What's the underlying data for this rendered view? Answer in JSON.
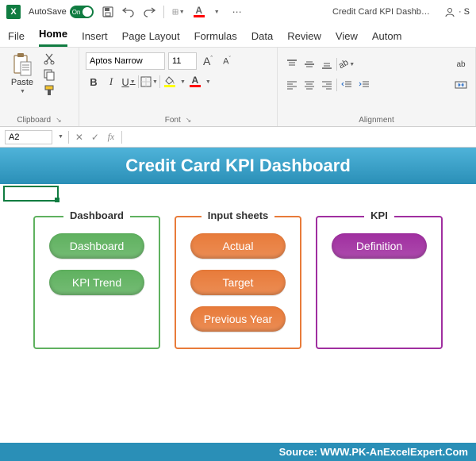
{
  "titlebar": {
    "autosave_label": "AutoSave",
    "autosave_state": "On",
    "doc_title": "Credit Card KPI Dashb…",
    "account_indicator": "· S"
  },
  "tabs": {
    "items": [
      "File",
      "Home",
      "Insert",
      "Page Layout",
      "Formulas",
      "Data",
      "Review",
      "View",
      "Autom"
    ],
    "active_index": 1
  },
  "ribbon": {
    "clipboard": {
      "paste": "Paste",
      "group_label": "Clipboard"
    },
    "font": {
      "name": "Aptos Narrow",
      "size": "11",
      "bold": "B",
      "italic": "I",
      "underline": "U",
      "group_label": "Font",
      "increase": "A",
      "decrease": "A",
      "fill_color": "#ffff00",
      "font_color": "#ff0000",
      "underline_accent": "#ff0000"
    },
    "alignment": {
      "group_label": "Alignment",
      "wrap": "ab"
    }
  },
  "formula_bar": {
    "cell_ref": "A2",
    "fx": "fx"
  },
  "dashboard": {
    "banner_title": "Credit Card KPI Dashboard",
    "source_label": "Source: WWW.PK-AnExcelExpert.Com",
    "sections": [
      {
        "title": "Dashboard",
        "border_color": "#5fb15f",
        "pill_color": "#5fb15f",
        "pills": [
          "Dashboard",
          "KPI Trend"
        ]
      },
      {
        "title": "Input sheets",
        "border_color": "#e87b3a",
        "pill_color": "#e87b3a",
        "pills": [
          "Actual",
          "Target",
          "Previous Year"
        ]
      },
      {
        "title": "KPI",
        "border_color": "#a02fa0",
        "pill_color": "#a02fa0",
        "pills": [
          "Definition"
        ]
      }
    ]
  }
}
